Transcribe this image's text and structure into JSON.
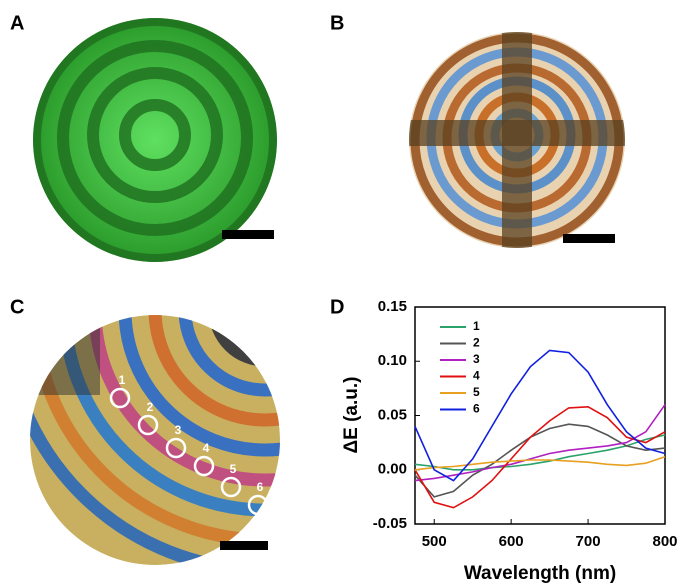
{
  "panels": {
    "labels": [
      "A",
      "B",
      "C",
      "D"
    ],
    "markers": [
      "1",
      "2",
      "3",
      "4",
      "5",
      "6"
    ]
  },
  "chart_data": {
    "type": "line",
    "xlabel": "Wavelength (nm)",
    "ylabel": "ΔE (a.u.)",
    "x": [
      475,
      500,
      525,
      550,
      575,
      600,
      625,
      650,
      675,
      700,
      725,
      750,
      775,
      800
    ],
    "xlim": [
      475,
      800
    ],
    "xticks": [
      500,
      600,
      700,
      800
    ],
    "ylim": [
      -0.05,
      0.15
    ],
    "yticks": [
      -0.05,
      {
        "value": 0,
        "label": "0.00"
      },
      0.05,
      {
        "value": 0.1,
        "label": "0.10"
      },
      0.15
    ],
    "series": [
      {
        "name": "1",
        "color": "#2aa36b",
        "values": [
          0.005,
          0.003,
          0.0,
          0.0,
          0.002,
          0.003,
          0.005,
          0.008,
          0.012,
          0.015,
          0.018,
          0.022,
          0.028,
          0.032
        ]
      },
      {
        "name": "2",
        "color": "#555555",
        "values": [
          -0.005,
          -0.025,
          -0.02,
          -0.005,
          0.005,
          0.018,
          0.03,
          0.038,
          0.042,
          0.04,
          0.032,
          0.022,
          0.018,
          0.02
        ]
      },
      {
        "name": "3",
        "color": "#b020c0",
        "values": [
          -0.01,
          -0.008,
          -0.005,
          -0.002,
          0.002,
          0.005,
          0.01,
          0.015,
          0.018,
          0.02,
          0.022,
          0.025,
          0.035,
          0.06
        ]
      },
      {
        "name": "4",
        "color": "#e01010",
        "values": [
          0.0,
          -0.03,
          -0.035,
          -0.025,
          -0.01,
          0.01,
          0.03,
          0.045,
          0.057,
          0.058,
          0.048,
          0.03,
          0.025,
          0.035
        ]
      },
      {
        "name": "5",
        "color": "#e8a020",
        "values": [
          0.0,
          0.002,
          0.003,
          0.005,
          0.007,
          0.008,
          0.009,
          0.009,
          0.008,
          0.007,
          0.005,
          0.004,
          0.006,
          0.012
        ]
      },
      {
        "name": "6",
        "color": "#1020e0",
        "values": [
          0.04,
          0.0,
          -0.01,
          0.01,
          0.04,
          0.07,
          0.095,
          0.11,
          0.108,
          0.09,
          0.06,
          0.035,
          0.02,
          0.015
        ]
      }
    ]
  }
}
